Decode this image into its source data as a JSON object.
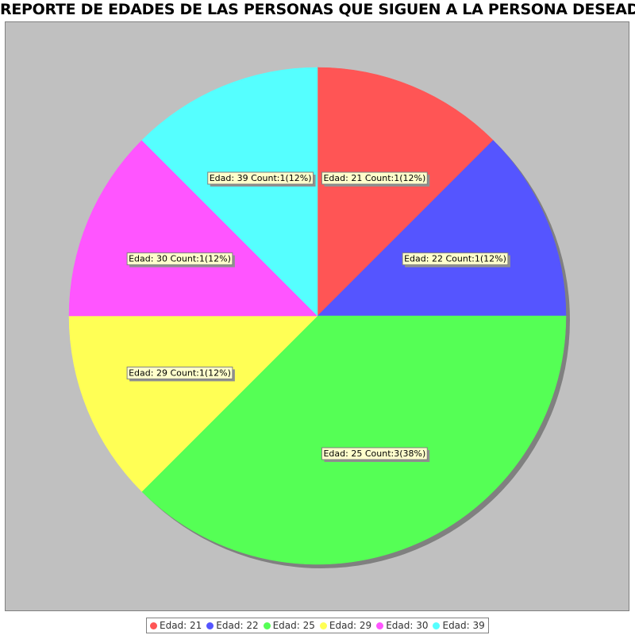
{
  "chart_data": {
    "type": "pie",
    "title": "REPORTE DE EDADES DE LAS PERSONAS QUE SIGUEN A LA PERSONA DESEADA",
    "background_color": "#c0c0c0",
    "slices": [
      {
        "legend": "Edad: 21",
        "label": "Edad: 21 Count:1(12%)",
        "value": 1,
        "color": "#ff5555"
      },
      {
        "legend": "Edad: 22",
        "label": "Edad: 22 Count:1(12%)",
        "value": 1,
        "color": "#5555ff"
      },
      {
        "legend": "Edad: 25",
        "label": "Edad: 25 Count:3(38%)",
        "value": 3,
        "color": "#55ff55"
      },
      {
        "legend": "Edad: 29",
        "label": "Edad: 29 Count:1(12%)",
        "value": 1,
        "color": "#ffff55"
      },
      {
        "legend": "Edad: 30",
        "label": "Edad: 30 Count:1(12%)",
        "value": 1,
        "color": "#ff55ff"
      },
      {
        "legend": "Edad: 39",
        "label": "Edad: 39 Count:1(12%)",
        "value": 1,
        "color": "#55ffff"
      }
    ],
    "start_angle": "top",
    "direction": "clockwise",
    "legend_position": "bottom"
  }
}
